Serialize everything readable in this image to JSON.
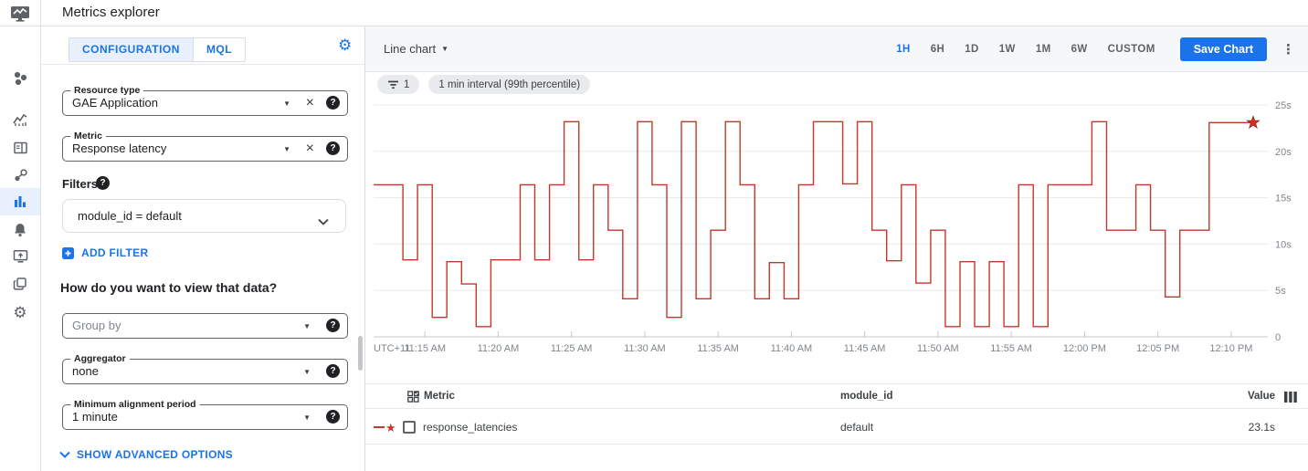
{
  "header": {
    "title": "Metrics explorer"
  },
  "sidebar": {
    "icons": [
      "monitoring-logo",
      "groups",
      "trending-chart",
      "dashboards-card",
      "services",
      "metrics-explorer",
      "alerting",
      "uptime-checks",
      "group-copies",
      "settings"
    ],
    "active": "metrics-explorer"
  },
  "config_panel": {
    "tabs": [
      {
        "label": "CONFIGURATION",
        "selected": true
      },
      {
        "label": "MQL",
        "selected": false
      }
    ],
    "resource_type": {
      "label": "Resource type",
      "value": "GAE Application"
    },
    "metric": {
      "label": "Metric",
      "value": "Response latency"
    },
    "filters_label": "Filters",
    "filter_chip": "module_id = default",
    "add_filter_label": "ADD FILTER",
    "view_question": "How do you want to view that data?",
    "group_by": {
      "placeholder": "Group by"
    },
    "aggregator": {
      "label": "Aggregator",
      "value": "none"
    },
    "min_alignment": {
      "label": "Minimum alignment period",
      "value": "1 minute"
    },
    "show_advanced_label": "SHOW ADVANCED OPTIONS"
  },
  "chart_toolbar": {
    "chart_type_label": "Line chart",
    "time_ranges": [
      "1H",
      "6H",
      "1D",
      "1W",
      "1M",
      "6W",
      "CUSTOM"
    ],
    "selected_range": "1H",
    "save_button_label": "Save Chart"
  },
  "chips": {
    "filter_count": "1",
    "interval_label": "1 min interval (99th percentile)"
  },
  "chart_data": {
    "type": "line",
    "style": "step-after",
    "unit": "s",
    "ylim": [
      0,
      25
    ],
    "y_tick_values": [
      0,
      5,
      10,
      15,
      20,
      25
    ],
    "y_tick_labels": [
      "0",
      "5s",
      "10s",
      "15s",
      "20s",
      "25s"
    ],
    "timezone_label": "UTC+11",
    "x_tick_labels": [
      "11:15 AM",
      "11:20 AM",
      "11:25 AM",
      "11:30 AM",
      "11:35 AM",
      "11:40 AM",
      "11:45 AM",
      "11:50 AM",
      "11:55 AM",
      "12:00 PM",
      "12:05 PM",
      "12:10 PM"
    ],
    "x_tick_minutes": [
      675,
      680,
      685,
      690,
      695,
      700,
      705,
      710,
      715,
      720,
      725,
      730
    ],
    "x_axis_start_minute": 671.5,
    "x_axis_span_minutes": 61,
    "series_start_minute": 672,
    "interval_minutes": 1,
    "grid": "horizontal",
    "legend_position": "table-below",
    "series": [
      {
        "name": "response_latencies",
        "module_id": "default",
        "color": "#c5372b",
        "marker": "star-at-latest",
        "latest_value_label": "23.1s",
        "start_time": "11:12 AM",
        "end_time": "12:11 PM",
        "values": [
          16.4,
          16.4,
          8.3,
          16.4,
          2.1,
          8.1,
          5.7,
          1.1,
          8.3,
          8.3,
          16.4,
          8.3,
          16.4,
          23.2,
          8.3,
          16.4,
          11.5,
          4.1,
          23.2,
          16.4,
          2.1,
          23.2,
          4.1,
          11.5,
          23.2,
          16.4,
          4.1,
          8.0,
          4.1,
          16.4,
          23.2,
          23.2,
          16.5,
          23.2,
          11.5,
          8.2,
          16.4,
          5.8,
          11.5,
          1.1,
          8.1,
          1.1,
          8.1,
          1.1,
          16.4,
          1.1,
          16.4,
          16.4,
          16.4,
          23.2,
          11.5,
          11.5,
          16.4,
          11.5,
          4.3,
          11.5,
          11.5,
          23.1,
          23.1,
          23.1
        ]
      }
    ]
  },
  "table": {
    "headers": {
      "metric": "Metric",
      "module_id": "module_id",
      "value": "Value"
    },
    "rows": [
      {
        "metric": "response_latencies",
        "module_id": "default",
        "value": "23.1s",
        "checked": false
      }
    ]
  },
  "colors": {
    "accent": "#1a73e8",
    "selected_tab_bg": "#e8f0fe",
    "line_red": "#c5372b",
    "grid": "#e9eaed",
    "axis_text": "#80868b"
  }
}
